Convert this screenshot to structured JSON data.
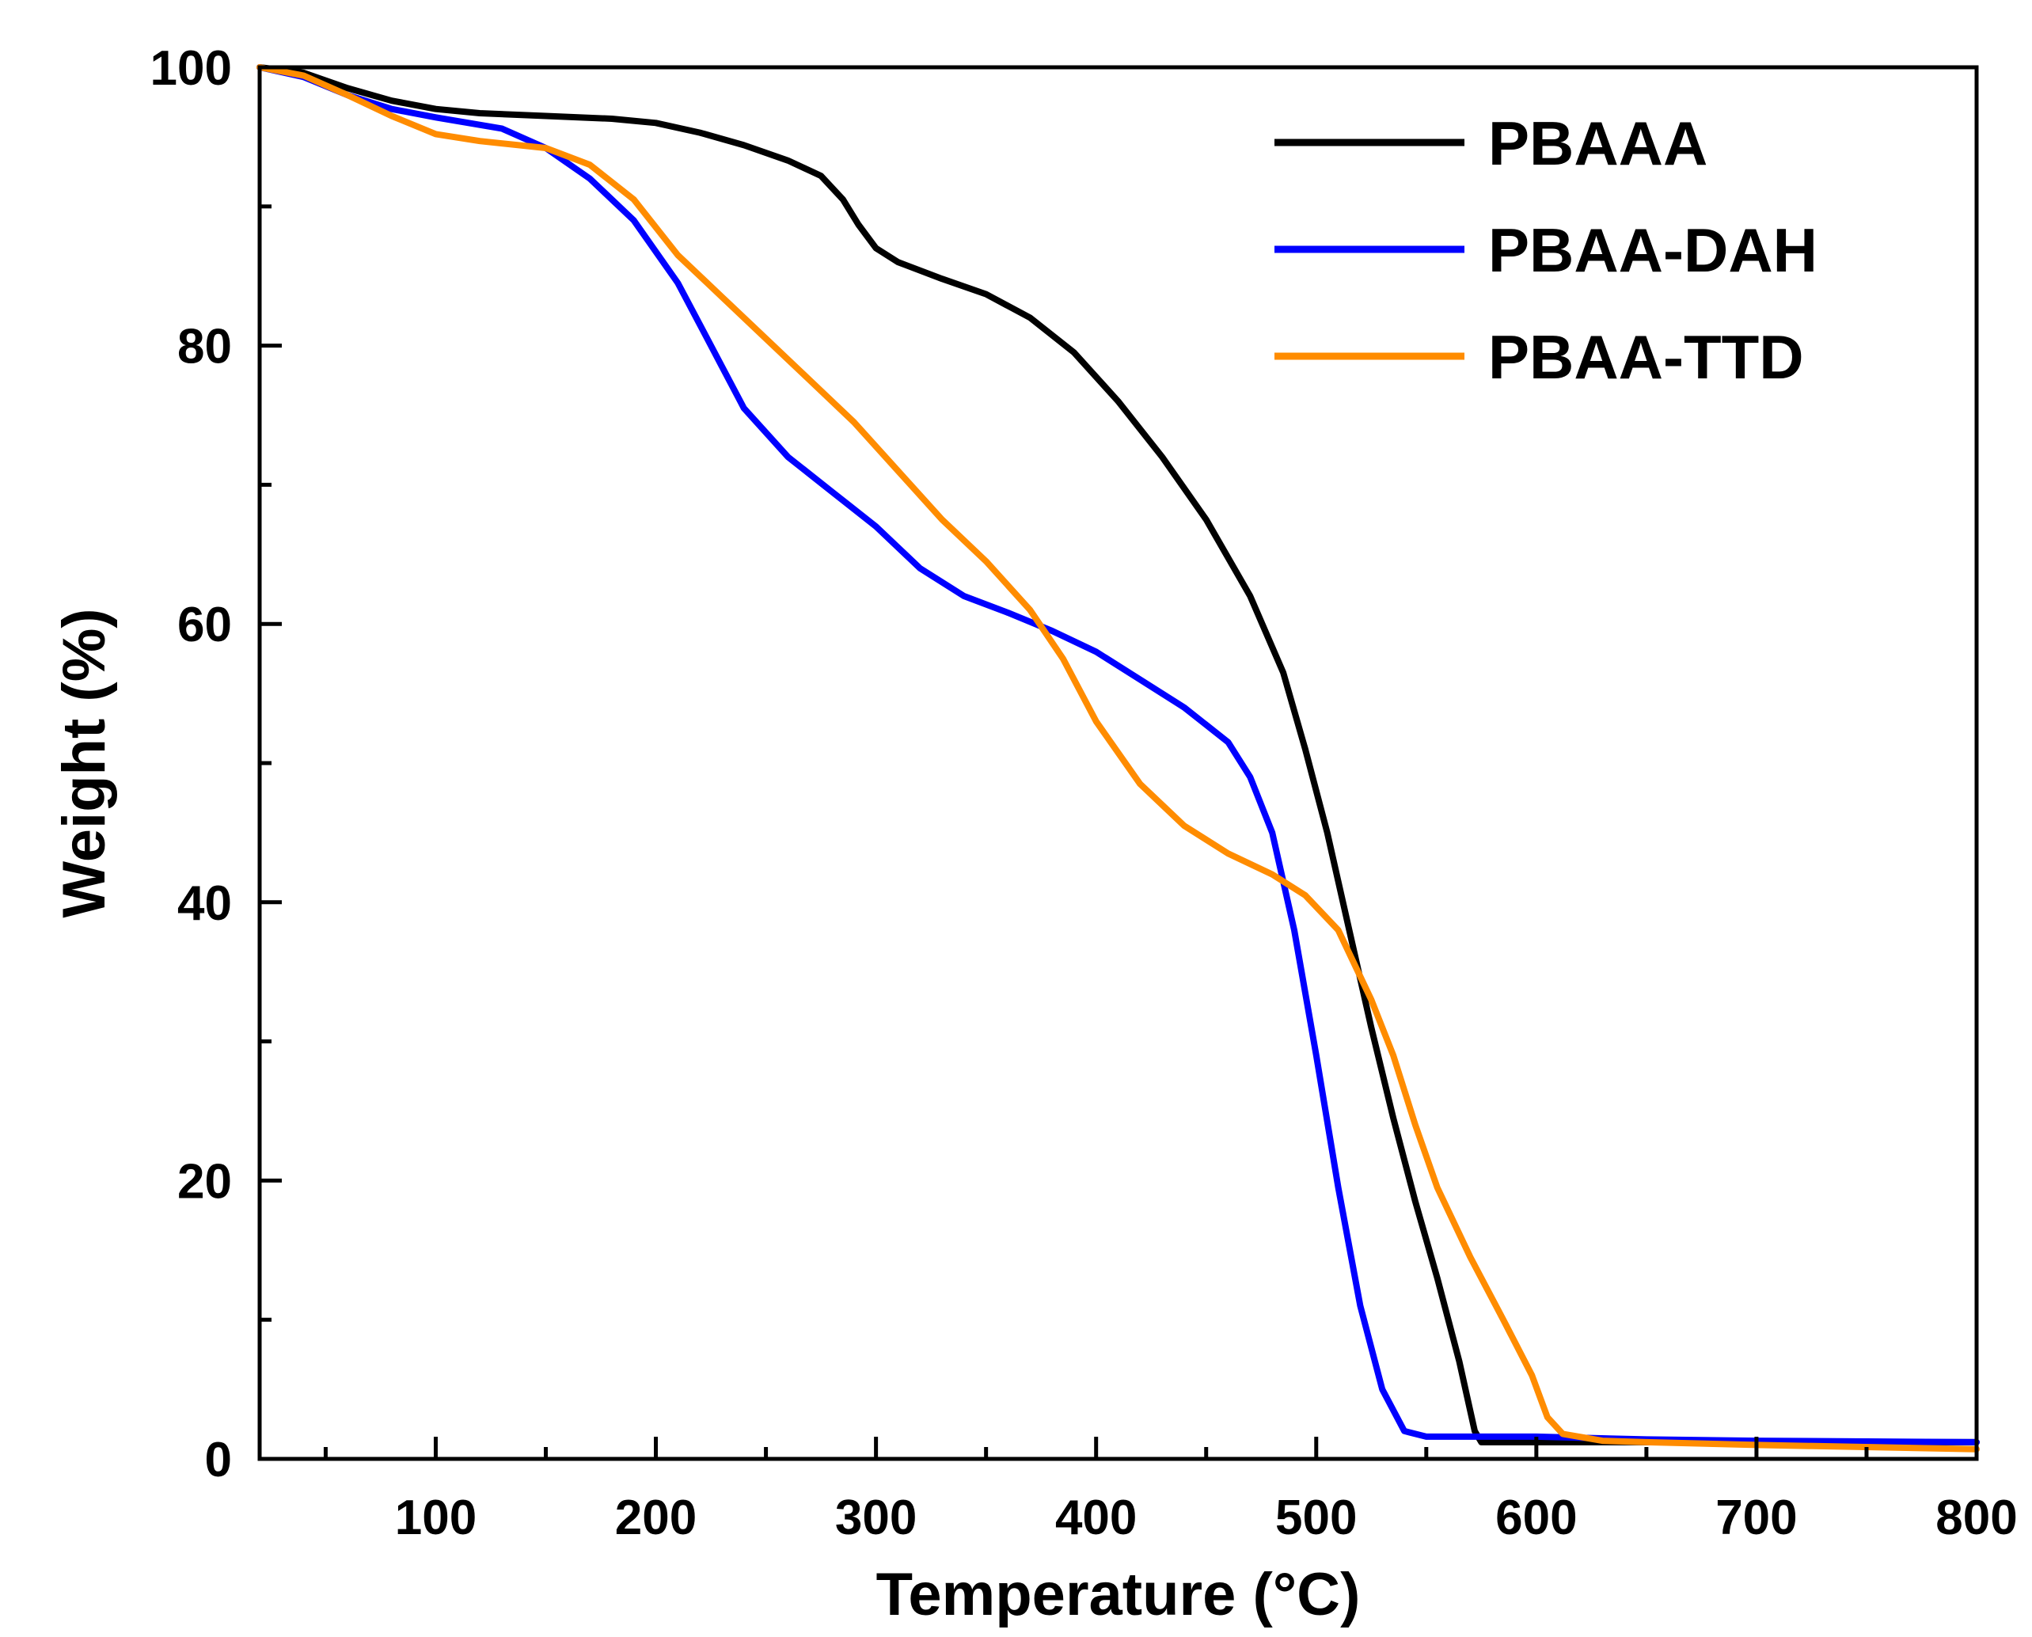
{
  "chart_data": {
    "type": "line",
    "title": "",
    "xlabel": "Temperature (°C)",
    "ylabel": "Weight (%)",
    "xlim": [
      20,
      800
    ],
    "ylim": [
      0,
      100
    ],
    "x_ticks": [
      100,
      200,
      300,
      400,
      500,
      600,
      700,
      800
    ],
    "x_minor_ticks": [
      50,
      150,
      250,
      350,
      450,
      550,
      650,
      750
    ],
    "y_ticks": [
      0,
      20,
      40,
      60,
      80,
      100
    ],
    "y_minor_ticks": [
      10,
      30,
      50,
      70,
      90
    ],
    "grid": false,
    "legend": "top-right",
    "series": [
      {
        "name": "PBAAA",
        "color": "#000000",
        "points": [
          [
            20,
            100
          ],
          [
            40,
            99.6
          ],
          [
            60,
            98.5
          ],
          [
            80,
            97.6
          ],
          [
            100,
            97
          ],
          [
            120,
            96.7
          ],
          [
            150,
            96.5
          ],
          [
            180,
            96.3
          ],
          [
            200,
            96
          ],
          [
            220,
            95.3
          ],
          [
            240,
            94.4
          ],
          [
            260,
            93.3
          ],
          [
            275,
            92.2
          ],
          [
            285,
            90.5
          ],
          [
            292,
            88.7
          ],
          [
            300,
            87
          ],
          [
            310,
            86
          ],
          [
            330,
            84.8
          ],
          [
            350,
            83.7
          ],
          [
            370,
            82
          ],
          [
            390,
            79.5
          ],
          [
            410,
            76
          ],
          [
            430,
            72
          ],
          [
            450,
            67.5
          ],
          [
            470,
            62
          ],
          [
            485,
            56.5
          ],
          [
            495,
            51
          ],
          [
            505,
            45
          ],
          [
            515,
            38
          ],
          [
            525,
            31
          ],
          [
            535,
            24.5
          ],
          [
            545,
            18.5
          ],
          [
            555,
            13
          ],
          [
            565,
            7
          ],
          [
            572,
            2
          ],
          [
            575,
            1.2
          ],
          [
            600,
            1.2
          ],
          [
            650,
            1.2
          ],
          [
            700,
            1.2
          ],
          [
            800,
            1.2
          ]
        ]
      },
      {
        "name": "PBAA-DAH",
        "color": "#0000ff",
        "points": [
          [
            20,
            100
          ],
          [
            40,
            99.3
          ],
          [
            60,
            98
          ],
          [
            80,
            97
          ],
          [
            100,
            96.4
          ],
          [
            130,
            95.6
          ],
          [
            150,
            94.2
          ],
          [
            170,
            92
          ],
          [
            190,
            89
          ],
          [
            210,
            84.5
          ],
          [
            220,
            81.5
          ],
          [
            230,
            78.5
          ],
          [
            240,
            75.5
          ],
          [
            260,
            72
          ],
          [
            280,
            69.5
          ],
          [
            300,
            67
          ],
          [
            320,
            64
          ],
          [
            340,
            62
          ],
          [
            360,
            60.8
          ],
          [
            380,
            59.5
          ],
          [
            400,
            58
          ],
          [
            420,
            56
          ],
          [
            440,
            54
          ],
          [
            460,
            51.5
          ],
          [
            470,
            49
          ],
          [
            480,
            45
          ],
          [
            490,
            38
          ],
          [
            500,
            29
          ],
          [
            510,
            19.5
          ],
          [
            520,
            11
          ],
          [
            530,
            5
          ],
          [
            540,
            2
          ],
          [
            550,
            1.6
          ],
          [
            600,
            1.6
          ],
          [
            650,
            1.4
          ],
          [
            700,
            1.3
          ],
          [
            800,
            1.2
          ]
        ]
      },
      {
        "name": "PBAA-TTD",
        "color": "#ff8c00",
        "points": [
          [
            20,
            100
          ],
          [
            40,
            99.4
          ],
          [
            60,
            98
          ],
          [
            80,
            96.5
          ],
          [
            100,
            95.2
          ],
          [
            120,
            94.7
          ],
          [
            150,
            94.2
          ],
          [
            170,
            93
          ],
          [
            190,
            90.5
          ],
          [
            210,
            86.5
          ],
          [
            230,
            83.5
          ],
          [
            250,
            80.5
          ],
          [
            270,
            77.5
          ],
          [
            290,
            74.5
          ],
          [
            310,
            71
          ],
          [
            330,
            67.5
          ],
          [
            350,
            64.5
          ],
          [
            370,
            61
          ],
          [
            385,
            57.5
          ],
          [
            400,
            53
          ],
          [
            420,
            48.5
          ],
          [
            440,
            45.5
          ],
          [
            460,
            43.5
          ],
          [
            480,
            42
          ],
          [
            495,
            40.5
          ],
          [
            510,
            38
          ],
          [
            525,
            33
          ],
          [
            535,
            29
          ],
          [
            545,
            24
          ],
          [
            555,
            19.5
          ],
          [
            570,
            14.5
          ],
          [
            585,
            10
          ],
          [
            598,
            6
          ],
          [
            605,
            3
          ],
          [
            612,
            1.8
          ],
          [
            630,
            1.3
          ],
          [
            650,
            1.2
          ],
          [
            700,
            1
          ],
          [
            800,
            0.7
          ]
        ]
      }
    ]
  }
}
